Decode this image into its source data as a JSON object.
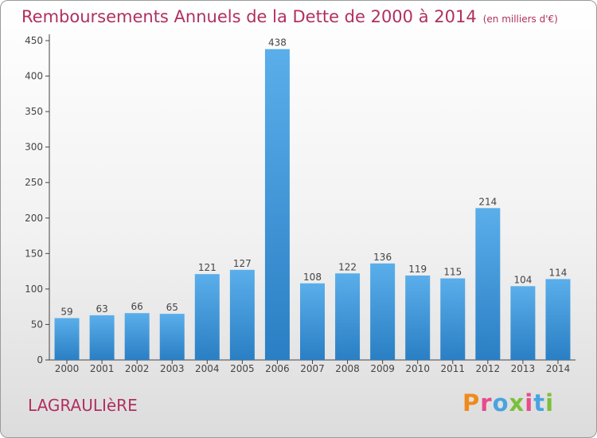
{
  "chart_data": {
    "type": "bar",
    "title": "Remboursements Annuels de la Dette de 2000 à 2014",
    "unit_label": "(en milliers d'€)",
    "categories": [
      "2000",
      "2001",
      "2002",
      "2003",
      "2004",
      "2005",
      "2006",
      "2007",
      "2008",
      "2009",
      "2010",
      "2011",
      "2012",
      "2013",
      "2014"
    ],
    "values": [
      59,
      63,
      66,
      65,
      121,
      127,
      438,
      108,
      122,
      136,
      119,
      115,
      214,
      104,
      114
    ],
    "ylim": [
      0,
      450
    ],
    "yticks": [
      0,
      50,
      100,
      150,
      200,
      250,
      300,
      350,
      400,
      450
    ],
    "xlabel": "",
    "ylabel": "",
    "grid": false,
    "bar_color_top": "#5aaeea",
    "bar_color_bottom": "#2a7fc4"
  },
  "footer": {
    "location": "LAGRAULIèRE",
    "logo_letters": [
      "P",
      "r",
      "o",
      "x",
      "i",
      "t",
      "i"
    ],
    "logo_colors": [
      "#f08a1c",
      "#e84a8c",
      "#4aa3df",
      "#7bbf3a",
      "#e84a8c",
      "#4aa3df",
      "#7bbf3a"
    ]
  },
  "colors": {
    "title": "#b03060",
    "axis": "#444444"
  }
}
